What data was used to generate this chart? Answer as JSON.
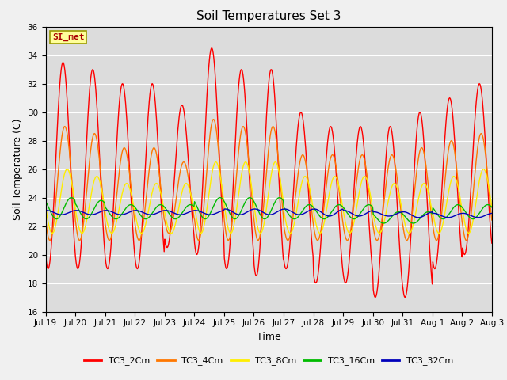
{
  "title": "Soil Temperatures Set 3",
  "xlabel": "Time",
  "ylabel": "Soil Temperature (C)",
  "ylim": [
    16,
    36
  ],
  "series_names": [
    "TC3_2Cm",
    "TC3_4Cm",
    "TC3_8Cm",
    "TC3_16Cm",
    "TC3_32Cm"
  ],
  "series_colors": [
    "#FF0000",
    "#FF7700",
    "#FFEE00",
    "#00BB00",
    "#0000BB"
  ],
  "xtick_labels": [
    "Jul 19",
    "Jul 20",
    "Jul 21",
    "Jul 22",
    "Jul 23",
    "Jul 24",
    "Jul 25",
    "Jul 26",
    "Jul 27",
    "Jul 28",
    "Jul 29",
    "Jul 30",
    "Jul 31",
    "Aug 1",
    "Aug 2",
    "Aug 3"
  ],
  "annotation_text": "SI_met",
  "bg_color": "#DCDCDC",
  "fig_bg_color": "#F0F0F0",
  "title_fontsize": 11,
  "label_fontsize": 9,
  "tick_fontsize": 7.5
}
